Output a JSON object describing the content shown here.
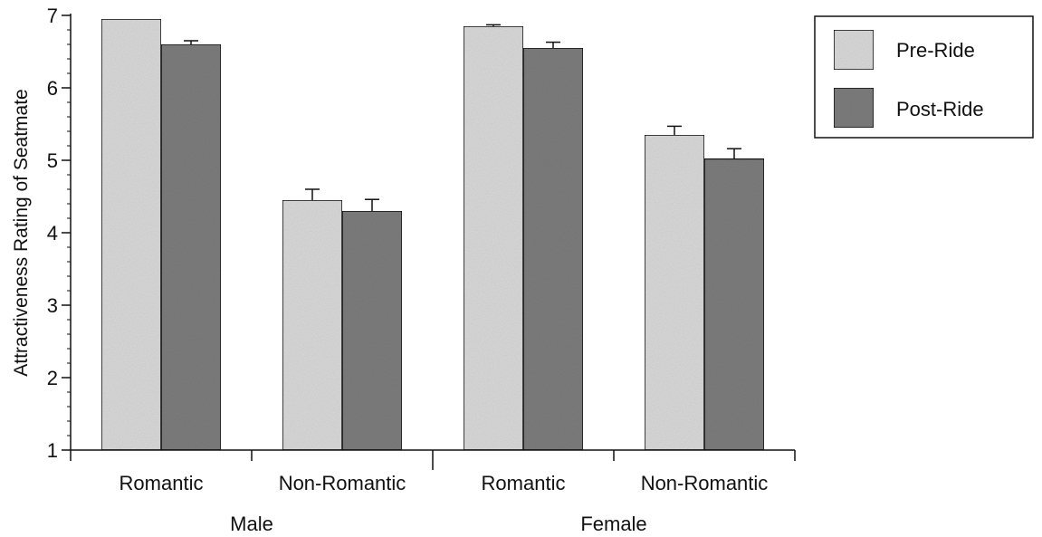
{
  "chart_data": {
    "type": "bar",
    "title": "",
    "xlabel": "",
    "ylabel": "Attractiveness Rating of Seatmate",
    "ylim": [
      1,
      7
    ],
    "yticks": [
      1,
      2,
      3,
      4,
      5,
      6,
      7
    ],
    "grid": false,
    "legend_position": "top-right",
    "groups": [
      "Male",
      "Female"
    ],
    "categories": [
      "Romantic",
      "Non-Romantic",
      "Romantic",
      "Non-Romantic"
    ],
    "category_group": [
      0,
      0,
      1,
      1
    ],
    "series": [
      {
        "name": "Pre-Ride",
        "color": "#d9d9d9",
        "values": [
          6.95,
          4.45,
          6.85,
          5.35
        ],
        "errors": [
          0.0,
          0.15,
          0.02,
          0.12
        ]
      },
      {
        "name": "Post-Ride",
        "color": "#7d7d7d",
        "values": [
          6.6,
          4.3,
          6.55,
          5.02
        ],
        "errors": [
          0.05,
          0.16,
          0.08,
          0.14
        ]
      }
    ]
  }
}
